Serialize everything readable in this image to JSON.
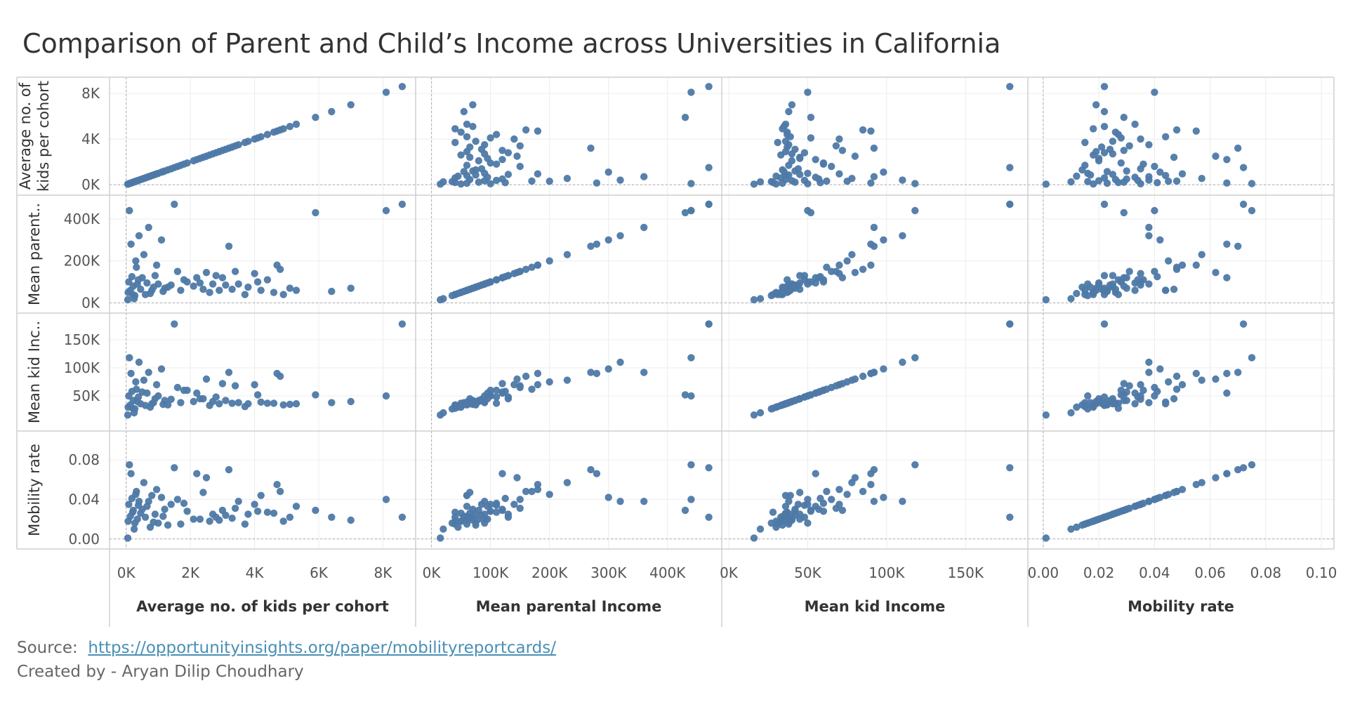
{
  "title": "Comparison of Parent and Child’s Income across Universities in California",
  "source_label": "Source:",
  "source_link": "https://opportunityinsights.org/paper/mobilityreportcards/",
  "credit": "Created by - Aryan Dilip Choudhary",
  "colors": {
    "marker": "#4e79a7",
    "grid": "#ececec",
    "axis": "#cfcfcf",
    "zero": "#aaaaaa"
  },
  "chart_data": {
    "type": "scatter",
    "layout": "scatter-matrix",
    "marker_color": "#4e79a7",
    "variables": [
      {
        "key": "kids",
        "label": "Average no. of kids per cohort",
        "row_label": [
          "Average no. of",
          "kids per cohort"
        ],
        "range": [
          -300,
          8800
        ],
        "ticks": [
          0,
          4000,
          8000
        ],
        "tick_labels": [
          "0K",
          "4K",
          "8K"
        ],
        "x_ticks": [
          0,
          2000,
          4000,
          6000,
          8000
        ],
        "x_tick_labels": [
          "0K",
          "2K",
          "4K",
          "6K",
          "8K"
        ]
      },
      {
        "key": "parent",
        "label": "Mean parental Income",
        "row_label": [
          "Mean parent.."
        ],
        "range": [
          -15000,
          480000
        ],
        "ticks": [
          0,
          200000,
          400000
        ],
        "tick_labels": [
          "0K",
          "200K",
          "400K"
        ],
        "x_ticks": [
          0,
          100000,
          200000,
          300000,
          400000
        ],
        "x_tick_labels": [
          "0K",
          "100K",
          "200K",
          "300K",
          "400K"
        ]
      },
      {
        "key": "kid",
        "label": "Mean kid Income",
        "row_label": [
          "Mean kid Inc.."
        ],
        "range": [
          0,
          185000
        ],
        "ticks": [
          50000,
          100000,
          150000
        ],
        "tick_labels": [
          "50K",
          "100K",
          "150K"
        ],
        "x_ticks": [
          0,
          50000,
          100000,
          150000
        ],
        "x_tick_labels": [
          "0K",
          "50K",
          "100K",
          "150K"
        ]
      },
      {
        "key": "mob",
        "label": "Mobility rate",
        "row_label": [
          "Mobility rate"
        ],
        "range": [
          -0.003,
          0.102
        ],
        "ticks": [
          0,
          0.04,
          0.08
        ],
        "tick_labels": [
          "0.00",
          "0.04",
          "0.08"
        ],
        "x_ticks": [
          0,
          0.02,
          0.04,
          0.06,
          0.08,
          0.1
        ],
        "x_tick_labels": [
          "0.00",
          "0.02",
          "0.04",
          "0.06",
          "0.08",
          "0.10"
        ]
      }
    ],
    "points": [
      [
        8600,
        470000,
        178000,
        0.022
      ],
      [
        8100,
        440000,
        50000,
        0.04
      ],
      [
        5900,
        430000,
        52000,
        0.029
      ],
      [
        5300,
        60000,
        36000,
        0.033
      ],
      [
        5100,
        70000,
        35000,
        0.022
      ],
      [
        4900,
        40000,
        34000,
        0.018
      ],
      [
        4600,
        50000,
        37000,
        0.026
      ],
      [
        4700,
        180000,
        90000,
        0.055
      ],
      [
        4800,
        160000,
        85000,
        0.048
      ],
      [
        4400,
        110000,
        37000,
        0.027
      ],
      [
        4200,
        60000,
        39000,
        0.044
      ],
      [
        4000,
        140000,
        70000,
        0.035
      ],
      [
        3800,
        75000,
        36000,
        0.025
      ],
      [
        3500,
        90000,
        38000,
        0.038
      ],
      [
        3400,
        150000,
        68000,
        0.031
      ],
      [
        3200,
        270000,
        92000,
        0.07
      ],
      [
        3000,
        120000,
        72000,
        0.029
      ],
      [
        2900,
        60000,
        36000,
        0.019
      ],
      [
        2700,
        90000,
        40000,
        0.025
      ],
      [
        2500,
        145000,
        80000,
        0.062
      ],
      [
        2400,
        65000,
        45000,
        0.047
      ],
      [
        2200,
        120000,
        55000,
        0.066
      ],
      [
        2100,
        80000,
        40000,
        0.02
      ],
      [
        1900,
        100000,
        60000,
        0.028
      ],
      [
        1700,
        60000,
        38000,
        0.015
      ],
      [
        1500,
        470000,
        178000,
        0.072
      ],
      [
        1400,
        85000,
        44000,
        0.035
      ],
      [
        1200,
        70000,
        42000,
        0.03
      ],
      [
        1100,
        300000,
        98000,
        0.042
      ],
      [
        1000,
        90000,
        50000,
        0.016
      ],
      [
        900,
        130000,
        45000,
        0.025
      ],
      [
        800,
        60000,
        36000,
        0.044
      ],
      [
        700,
        360000,
        92000,
        0.038
      ],
      [
        600,
        40000,
        33000,
        0.022
      ],
      [
        500,
        120000,
        57000,
        0.03
      ],
      [
        400,
        320000,
        110000,
        0.038
      ],
      [
        350,
        90000,
        40000,
        0.02
      ],
      [
        300,
        200000,
        75000,
        0.045
      ],
      [
        250,
        20000,
        20000,
        0.01
      ],
      [
        200,
        40000,
        28000,
        0.027
      ],
      [
        150,
        280000,
        90000,
        0.066
      ],
      [
        100,
        440000,
        118000,
        0.075
      ],
      [
        80,
        100000,
        50000,
        0.035
      ],
      [
        60,
        50000,
        30000,
        0.018
      ],
      [
        50,
        15000,
        16000,
        0.001
      ],
      [
        7000,
        70000,
        40000,
        0.019
      ],
      [
        6400,
        55000,
        38000,
        0.022
      ],
      [
        3700,
        40000,
        31000,
        0.015
      ],
      [
        4100,
        100000,
        52000,
        0.028
      ],
      [
        2800,
        130000,
        48000,
        0.022
      ],
      [
        1300,
        75000,
        34000,
        0.014
      ],
      [
        1800,
        110000,
        60000,
        0.036
      ],
      [
        2300,
        95000,
        45000,
        0.02
      ],
      [
        2600,
        50000,
        33000,
        0.018
      ],
      [
        3100,
        85000,
        42000,
        0.024
      ],
      [
        3300,
        65000,
        37000,
        0.021
      ],
      [
        1600,
        150000,
        65000,
        0.04
      ],
      [
        1150,
        55000,
        35000,
        0.023
      ],
      [
        950,
        180000,
        70000,
        0.05
      ],
      [
        850,
        75000,
        38000,
        0.017
      ],
      [
        750,
        45000,
        30000,
        0.012
      ],
      [
        650,
        95000,
        55000,
        0.033
      ],
      [
        550,
        230000,
        78000,
        0.057
      ],
      [
        450,
        65000,
        36000,
        0.026
      ],
      [
        380,
        110000,
        48000,
        0.034
      ],
      [
        320,
        170000,
        62000,
        0.048
      ],
      [
        270,
        35000,
        27000,
        0.016
      ],
      [
        220,
        80000,
        42000,
        0.029
      ],
      [
        180,
        125000,
        58000,
        0.041
      ],
      [
        130,
        60000,
        34000,
        0.023
      ]
    ]
  }
}
